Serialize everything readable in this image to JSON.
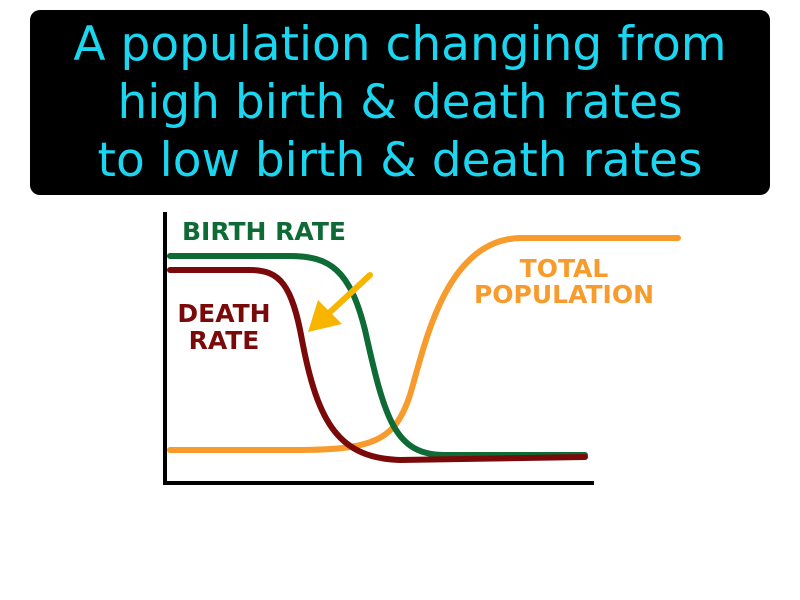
{
  "title": {
    "lines": [
      "A population changing from",
      "high birth & death rates",
      "to low birth & death rates"
    ],
    "color": "#1ad6f0",
    "background": "#000000"
  },
  "diagram": {
    "series": [
      {
        "name": "BIRTH RATE",
        "color": "#0f6b35",
        "trend": "high then falls to low"
      },
      {
        "name": "DEATH RATE",
        "color": "#7a0a0a",
        "trend": "high then falls earlier to low"
      },
      {
        "name": "TOTAL POPULATION",
        "color": "#f79b2c",
        "trend": "low then rises to high"
      }
    ],
    "labels": {
      "birth_rate": "BIRTH RATE",
      "death_rate_line1": "DEATH",
      "death_rate_line2": "RATE",
      "total_population_line1": "TOTAL",
      "total_population_line2": "POPULATION"
    },
    "arrow": {
      "color": "#f7b500",
      "icon": "arrow-pointing-to-death-rate"
    }
  }
}
